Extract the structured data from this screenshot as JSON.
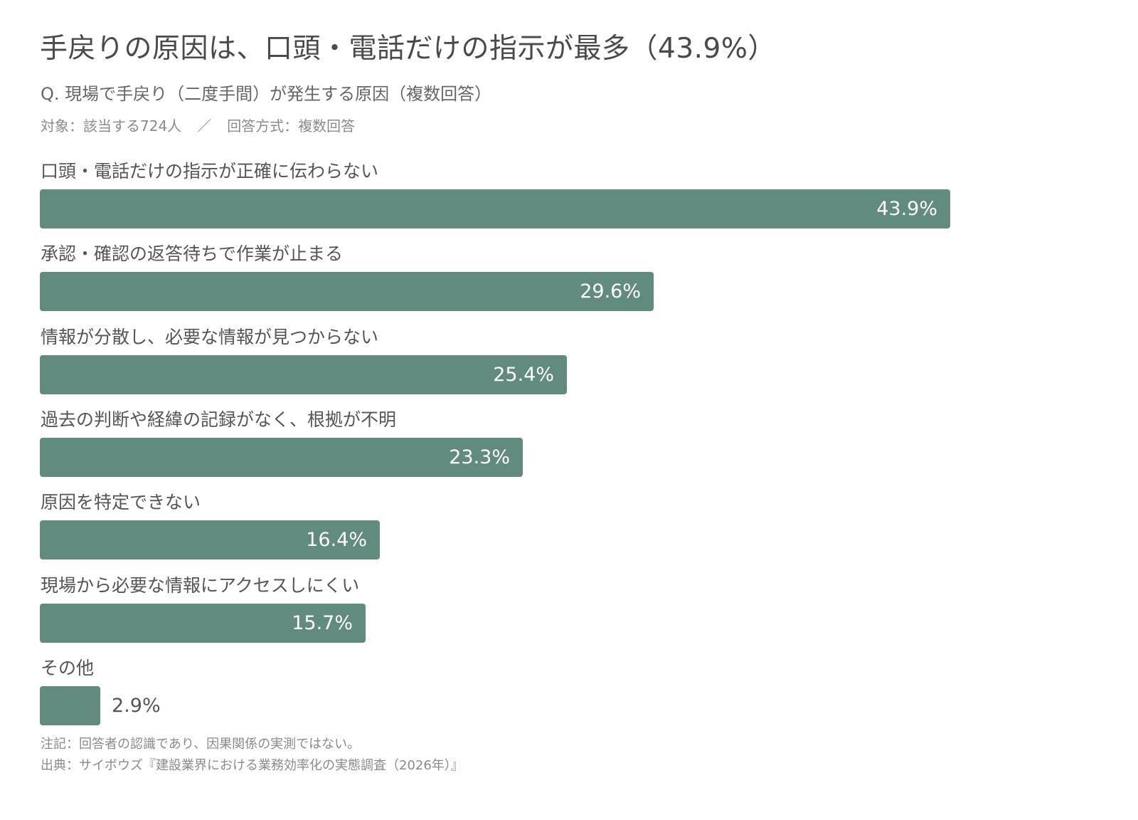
{
  "header": {
    "title": "手戻りの原因は、口頭・電話だけの指示が最多（43.9%）",
    "subtitle": "Q. 現場で手戻り（二度手間）が発生する原因（複数回答）",
    "target": "対象：該当する724人",
    "separator": "／",
    "method": "回答方式：複数回答"
  },
  "chart_data": {
    "type": "bar",
    "orientation": "horizontal",
    "categories": [
      "口頭・電話だけの指示が正確に伝わらない",
      "承認・確認の返答待ちで作業が止まる",
      "情報が分散し、必要な情報が見つからない",
      "過去の判断や経緯の記録がなく、根拠が不明",
      "原因を特定できない",
      "現場から必要な情報にアクセスしにくい",
      "その他"
    ],
    "values": [
      43.9,
      29.6,
      25.4,
      23.3,
      16.4,
      15.7,
      2.9
    ],
    "value_labels": [
      "43.9%",
      "29.6%",
      "25.4%",
      "23.3%",
      "16.4%",
      "15.7%",
      "2.9%"
    ],
    "unit": "%",
    "bar_color": "#618b7e",
    "grid": false,
    "legend": "none"
  },
  "footer": {
    "note": "注記：回答者の認識であり、因果関係の実測ではない。",
    "source": "出典：サイボウズ『建設業界における業務効率化の実態調査（2026年）』"
  }
}
